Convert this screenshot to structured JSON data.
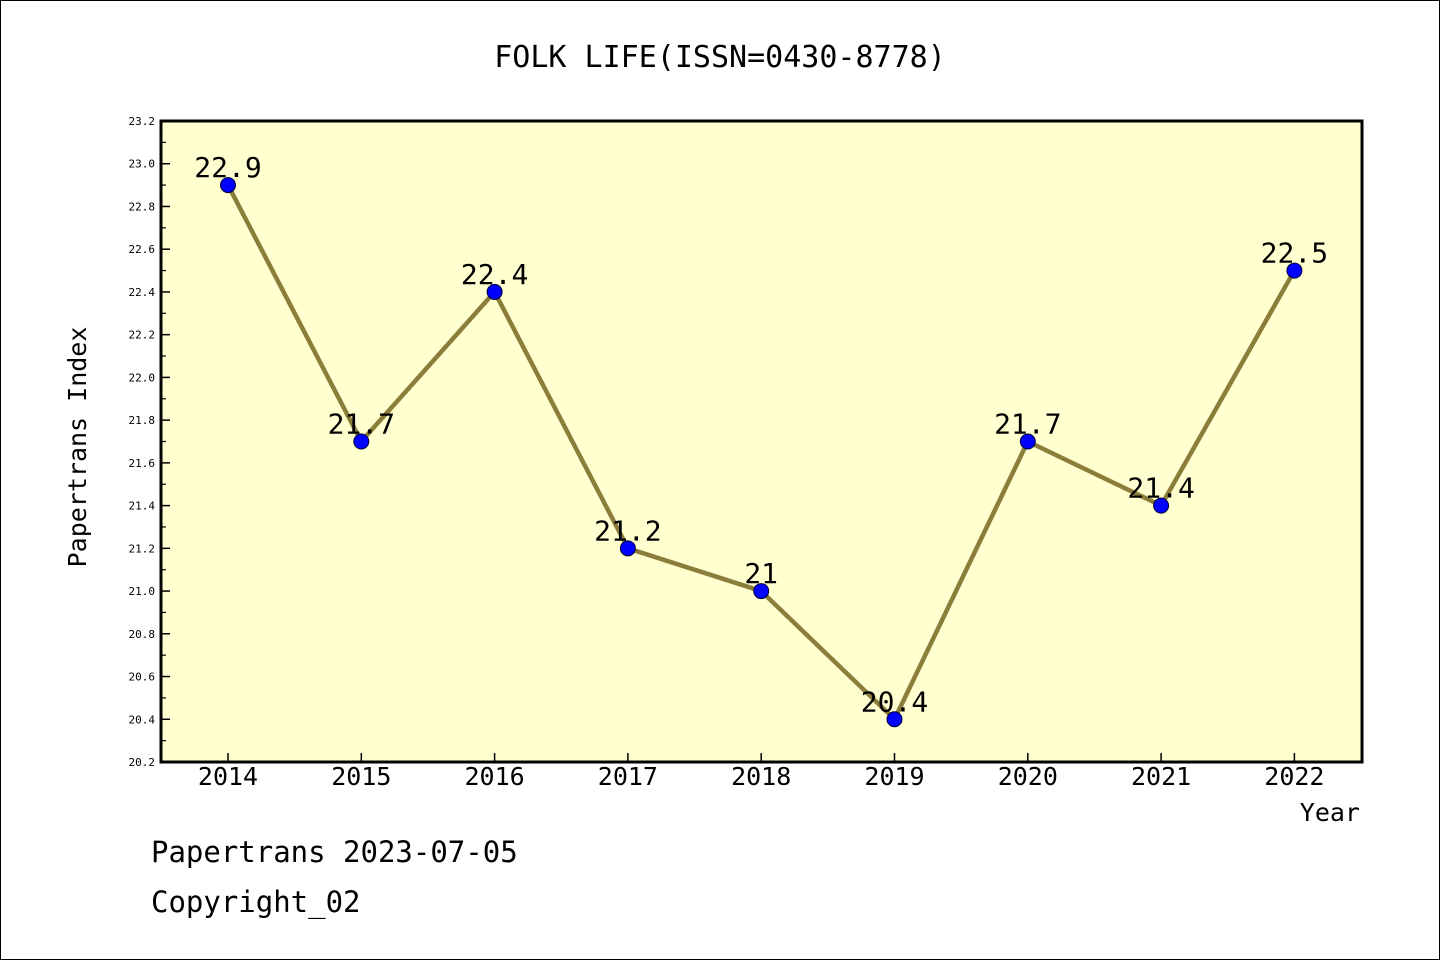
{
  "chart_data": {
    "type": "line",
    "title": "FOLK LIFE(ISSN=0430-8778)",
    "xlabel": "Year",
    "ylabel": "Papertrans Index",
    "x": [
      "2014",
      "2015",
      "2016",
      "2017",
      "2018",
      "2019",
      "2020",
      "2021",
      "2022"
    ],
    "series": [
      {
        "values": [
          22.9,
          21.7,
          22.4,
          21.2,
          21.0,
          20.4,
          21.7,
          21.4,
          22.5
        ],
        "labels": [
          "22.9",
          "21.7",
          "22.4",
          "21.2",
          "21",
          "20.4",
          "21.7",
          "21.4",
          "22.5"
        ]
      }
    ],
    "ylim": [
      20.2,
      23.2
    ],
    "yticks": [
      "20.2",
      "20.4",
      "20.6",
      "20.8",
      "21.0",
      "21.2",
      "21.4",
      "21.6",
      "21.8",
      "22.0",
      "22.2",
      "22.4",
      "22.6",
      "22.8",
      "23.0",
      "23.2"
    ],
    "grid": false,
    "legend": "none",
    "colors": {
      "plot_background": "#ffffd0",
      "line": "#8b7d3a",
      "marker": "#0000ff"
    }
  },
  "footer": {
    "line1": "Papertrans 2023-07-05",
    "line2": "Copyright_02"
  }
}
